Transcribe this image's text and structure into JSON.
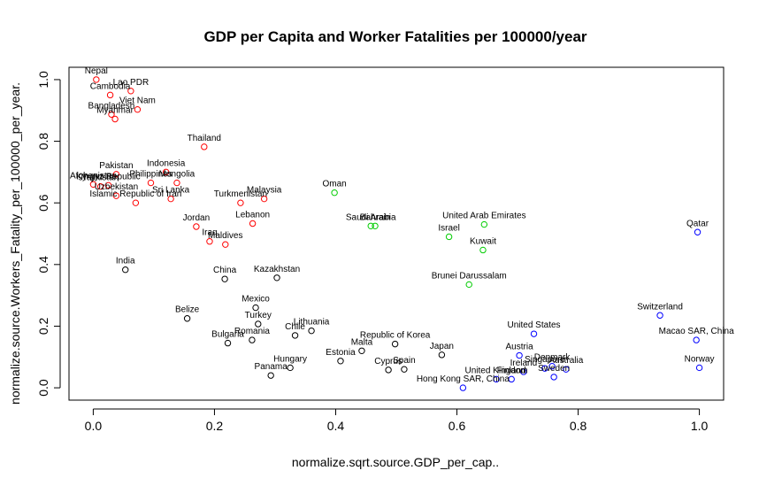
{
  "chart_data": {
    "type": "scatter",
    "title": "GDP per Capita and Worker Fatalities per 100000/year",
    "xlabel": "normalize.sqrt.source.GDP_per_cap..",
    "ylabel": "normalize.source.Workers_Fatality_per_100000_per_year.",
    "xlim": [
      -0.04,
      1.04
    ],
    "ylim": [
      -0.04,
      1.04
    ],
    "xticks": [
      0.0,
      0.2,
      0.4,
      0.6,
      0.8,
      1.0
    ],
    "yticks": [
      0.0,
      0.2,
      0.4,
      0.6,
      0.8,
      1.0
    ],
    "xtick_labels": [
      "0.0",
      "0.2",
      "0.4",
      "0.6",
      "0.8",
      "1.0"
    ],
    "ytick_labels": [
      "0.0",
      "0.2",
      "0.4",
      "0.6",
      "0.8",
      "1.0"
    ],
    "grid": false,
    "legend": "none",
    "colors": {
      "red": "#ff0000",
      "green": "#00cc00",
      "black": "#000000",
      "blue": "#0000ff"
    },
    "points": [
      {
        "label": "Nepal",
        "x": 0.005,
        "y": 1.0,
        "color": "red"
      },
      {
        "label": "Lao PDR",
        "x": 0.062,
        "y": 0.963,
        "color": "red"
      },
      {
        "label": "Cambodia",
        "x": 0.028,
        "y": 0.95,
        "color": "red"
      },
      {
        "label": "Viet Nam",
        "x": 0.073,
        "y": 0.903,
        "color": "red"
      },
      {
        "label": "Bangladesh",
        "x": 0.03,
        "y": 0.887,
        "color": "red"
      },
      {
        "label": "Myanmar",
        "x": 0.036,
        "y": 0.872,
        "color": "red"
      },
      {
        "label": "Thailand",
        "x": 0.183,
        "y": 0.782,
        "color": "red"
      },
      {
        "label": "Indonesia",
        "x": 0.12,
        "y": 0.7,
        "color": "red"
      },
      {
        "label": "Pakistan",
        "x": 0.038,
        "y": 0.693,
        "color": "red"
      },
      {
        "label": "Philippines",
        "x": 0.095,
        "y": 0.665,
        "color": "red"
      },
      {
        "label": "Mongolia",
        "x": 0.138,
        "y": 0.665,
        "color": "red"
      },
      {
        "label": "Afghanistan",
        "x": 0.0,
        "y": 0.66,
        "color": "red"
      },
      {
        "label": "Kyrgyz Republic",
        "x": 0.025,
        "y": 0.657,
        "color": "red"
      },
      {
        "label": "Tajikistan",
        "x": 0.012,
        "y": 0.653,
        "color": "red"
      },
      {
        "label": "Uzbekistan",
        "x": 0.038,
        "y": 0.623,
        "color": "red"
      },
      {
        "label": "Sri Lanka",
        "x": 0.128,
        "y": 0.613,
        "color": "red"
      },
      {
        "label": "Islamic Republic of Iran",
        "x": 0.07,
        "y": 0.6,
        "color": "red"
      },
      {
        "label": "Turkmenistan",
        "x": 0.243,
        "y": 0.6,
        "color": "red"
      },
      {
        "label": "Malaysia",
        "x": 0.282,
        "y": 0.613,
        "color": "red"
      },
      {
        "label": "Jordan",
        "x": 0.17,
        "y": 0.523,
        "color": "red"
      },
      {
        "label": "Iraq",
        "x": 0.192,
        "y": 0.475,
        "color": "red"
      },
      {
        "label": "Lebanon",
        "x": 0.263,
        "y": 0.533,
        "color": "red"
      },
      {
        "label": "Maldives",
        "x": 0.218,
        "y": 0.465,
        "color": "red"
      },
      {
        "label": "Oman",
        "x": 0.398,
        "y": 0.633,
        "color": "green"
      },
      {
        "label": "Saudi Arabia",
        "x": 0.458,
        "y": 0.525,
        "color": "green"
      },
      {
        "label": "Bahrain",
        "x": 0.465,
        "y": 0.525,
        "color": "green"
      },
      {
        "label": "United Arab Emirates",
        "x": 0.645,
        "y": 0.53,
        "color": "green"
      },
      {
        "label": "Israel",
        "x": 0.587,
        "y": 0.49,
        "color": "green"
      },
      {
        "label": "Kuwait",
        "x": 0.643,
        "y": 0.447,
        "color": "green"
      },
      {
        "label": "Brunei Darussalam",
        "x": 0.62,
        "y": 0.335,
        "color": "green"
      },
      {
        "label": "India",
        "x": 0.053,
        "y": 0.383,
        "color": "black"
      },
      {
        "label": "China",
        "x": 0.217,
        "y": 0.353,
        "color": "black"
      },
      {
        "label": "Kazakhstan",
        "x": 0.303,
        "y": 0.357,
        "color": "black"
      },
      {
        "label": "Belize",
        "x": 0.155,
        "y": 0.225,
        "color": "black"
      },
      {
        "label": "Mexico",
        "x": 0.268,
        "y": 0.26,
        "color": "black"
      },
      {
        "label": "Turkey",
        "x": 0.272,
        "y": 0.207,
        "color": "black"
      },
      {
        "label": "Romania",
        "x": 0.262,
        "y": 0.155,
        "color": "black"
      },
      {
        "label": "Bulgaria",
        "x": 0.222,
        "y": 0.145,
        "color": "black"
      },
      {
        "label": "Lithuania",
        "x": 0.36,
        "y": 0.185,
        "color": "black"
      },
      {
        "label": "Chile",
        "x": 0.333,
        "y": 0.17,
        "color": "black"
      },
      {
        "label": "Hungary",
        "x": 0.325,
        "y": 0.065,
        "color": "black"
      },
      {
        "label": "Panama",
        "x": 0.293,
        "y": 0.04,
        "color": "black"
      },
      {
        "label": "Estonia",
        "x": 0.408,
        "y": 0.087,
        "color": "black"
      },
      {
        "label": "Malta",
        "x": 0.443,
        "y": 0.12,
        "color": "black"
      },
      {
        "label": "Republic of Korea",
        "x": 0.498,
        "y": 0.142,
        "color": "black"
      },
      {
        "label": "Cyprus",
        "x": 0.487,
        "y": 0.058,
        "color": "black"
      },
      {
        "label": "Spain",
        "x": 0.513,
        "y": 0.06,
        "color": "black"
      },
      {
        "label": "Japan",
        "x": 0.575,
        "y": 0.107,
        "color": "black"
      },
      {
        "label": "Qatar",
        "x": 0.997,
        "y": 0.505,
        "color": "blue"
      },
      {
        "label": "Switzerland",
        "x": 0.935,
        "y": 0.235,
        "color": "blue"
      },
      {
        "label": "Macao SAR, China",
        "x": 0.995,
        "y": 0.155,
        "color": "blue"
      },
      {
        "label": "United States",
        "x": 0.727,
        "y": 0.175,
        "color": "blue"
      },
      {
        "label": "Austria",
        "x": 0.703,
        "y": 0.105,
        "color": "blue"
      },
      {
        "label": "Norway",
        "x": 1.0,
        "y": 0.065,
        "color": "blue"
      },
      {
        "label": "Denmark",
        "x": 0.757,
        "y": 0.07,
        "color": "blue"
      },
      {
        "label": "Singapore",
        "x": 0.745,
        "y": 0.063,
        "color": "blue"
      },
      {
        "label": "Australia",
        "x": 0.78,
        "y": 0.06,
        "color": "blue"
      },
      {
        "label": "Sweden",
        "x": 0.76,
        "y": 0.035,
        "color": "blue"
      },
      {
        "label": "United Kingdom",
        "x": 0.665,
        "y": 0.028,
        "color": "blue"
      },
      {
        "label": "Finland",
        "x": 0.69,
        "y": 0.028,
        "color": "blue"
      },
      {
        "label": "Ireland",
        "x": 0.71,
        "y": 0.052,
        "color": "blue"
      },
      {
        "label": "Hong Kong SAR, China",
        "x": 0.61,
        "y": 0.0,
        "color": "blue"
      }
    ]
  }
}
